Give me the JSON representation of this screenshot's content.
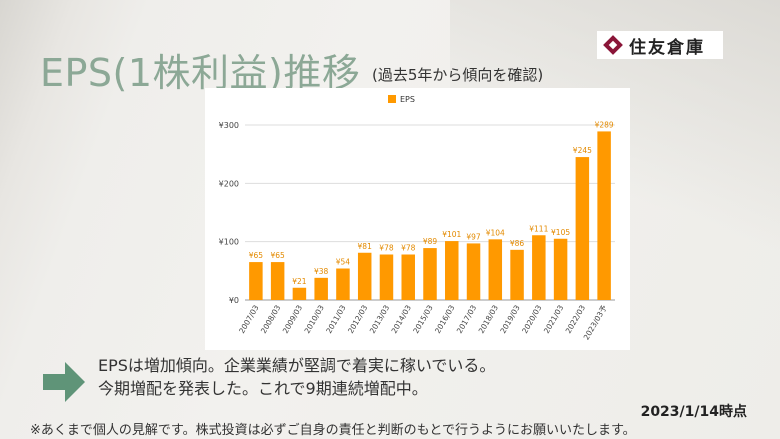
{
  "header": {
    "title": "EPS(1株利益)推移",
    "subtitle": "(過去5年から傾向を確認)",
    "logo_text": "住友倉庫",
    "logo_mark_color": "#8a1538"
  },
  "chart_data": {
    "type": "bar",
    "title": "",
    "legend": {
      "position": "top-center",
      "entries": [
        "EPS"
      ]
    },
    "series": [
      {
        "name": "EPS",
        "color": "#ff9900",
        "values": [
          65,
          65,
          21,
          38,
          54,
          81,
          78,
          78,
          89,
          101,
          97,
          104,
          86,
          111,
          105,
          245,
          289
        ]
      }
    ],
    "categories": [
      "2007/03",
      "2008/03",
      "2009/03",
      "2010/03",
      "2011/03",
      "2012/03",
      "2013/03",
      "2014/03",
      "2015/03",
      "2016/03",
      "2017/03",
      "2018/03",
      "2019/03",
      "2020/03",
      "2021/03",
      "2022/03",
      "2023/03予"
    ],
    "data_labels": [
      "¥65",
      "¥65",
      "¥21",
      "¥38",
      "¥54",
      "¥81",
      "¥78",
      "¥78",
      "¥89",
      "¥101",
      "¥97",
      "¥104",
      "¥86",
      "¥111",
      "¥105",
      "¥245",
      "¥289"
    ],
    "y_ticks": [
      0,
      100,
      200,
      300
    ],
    "y_tick_labels": [
      "¥0",
      "¥100",
      "¥200",
      "¥300"
    ],
    "ylim": [
      0,
      300
    ],
    "grid": true,
    "xlabel": "",
    "ylabel": ""
  },
  "summary": {
    "line1": "EPSは増加傾向。企業業績が堅調で着実に稼いでいる。",
    "line2": "今期増配を発表した。これで9期連続増配中。",
    "arrow_color": "#5f9478"
  },
  "footer": {
    "date": "2023/1/14時点",
    "disclaimer": "※あくまで個人の見解です。株式投資は必ずご自身の責任と判断のもとで行うようにお願いいたします。"
  }
}
